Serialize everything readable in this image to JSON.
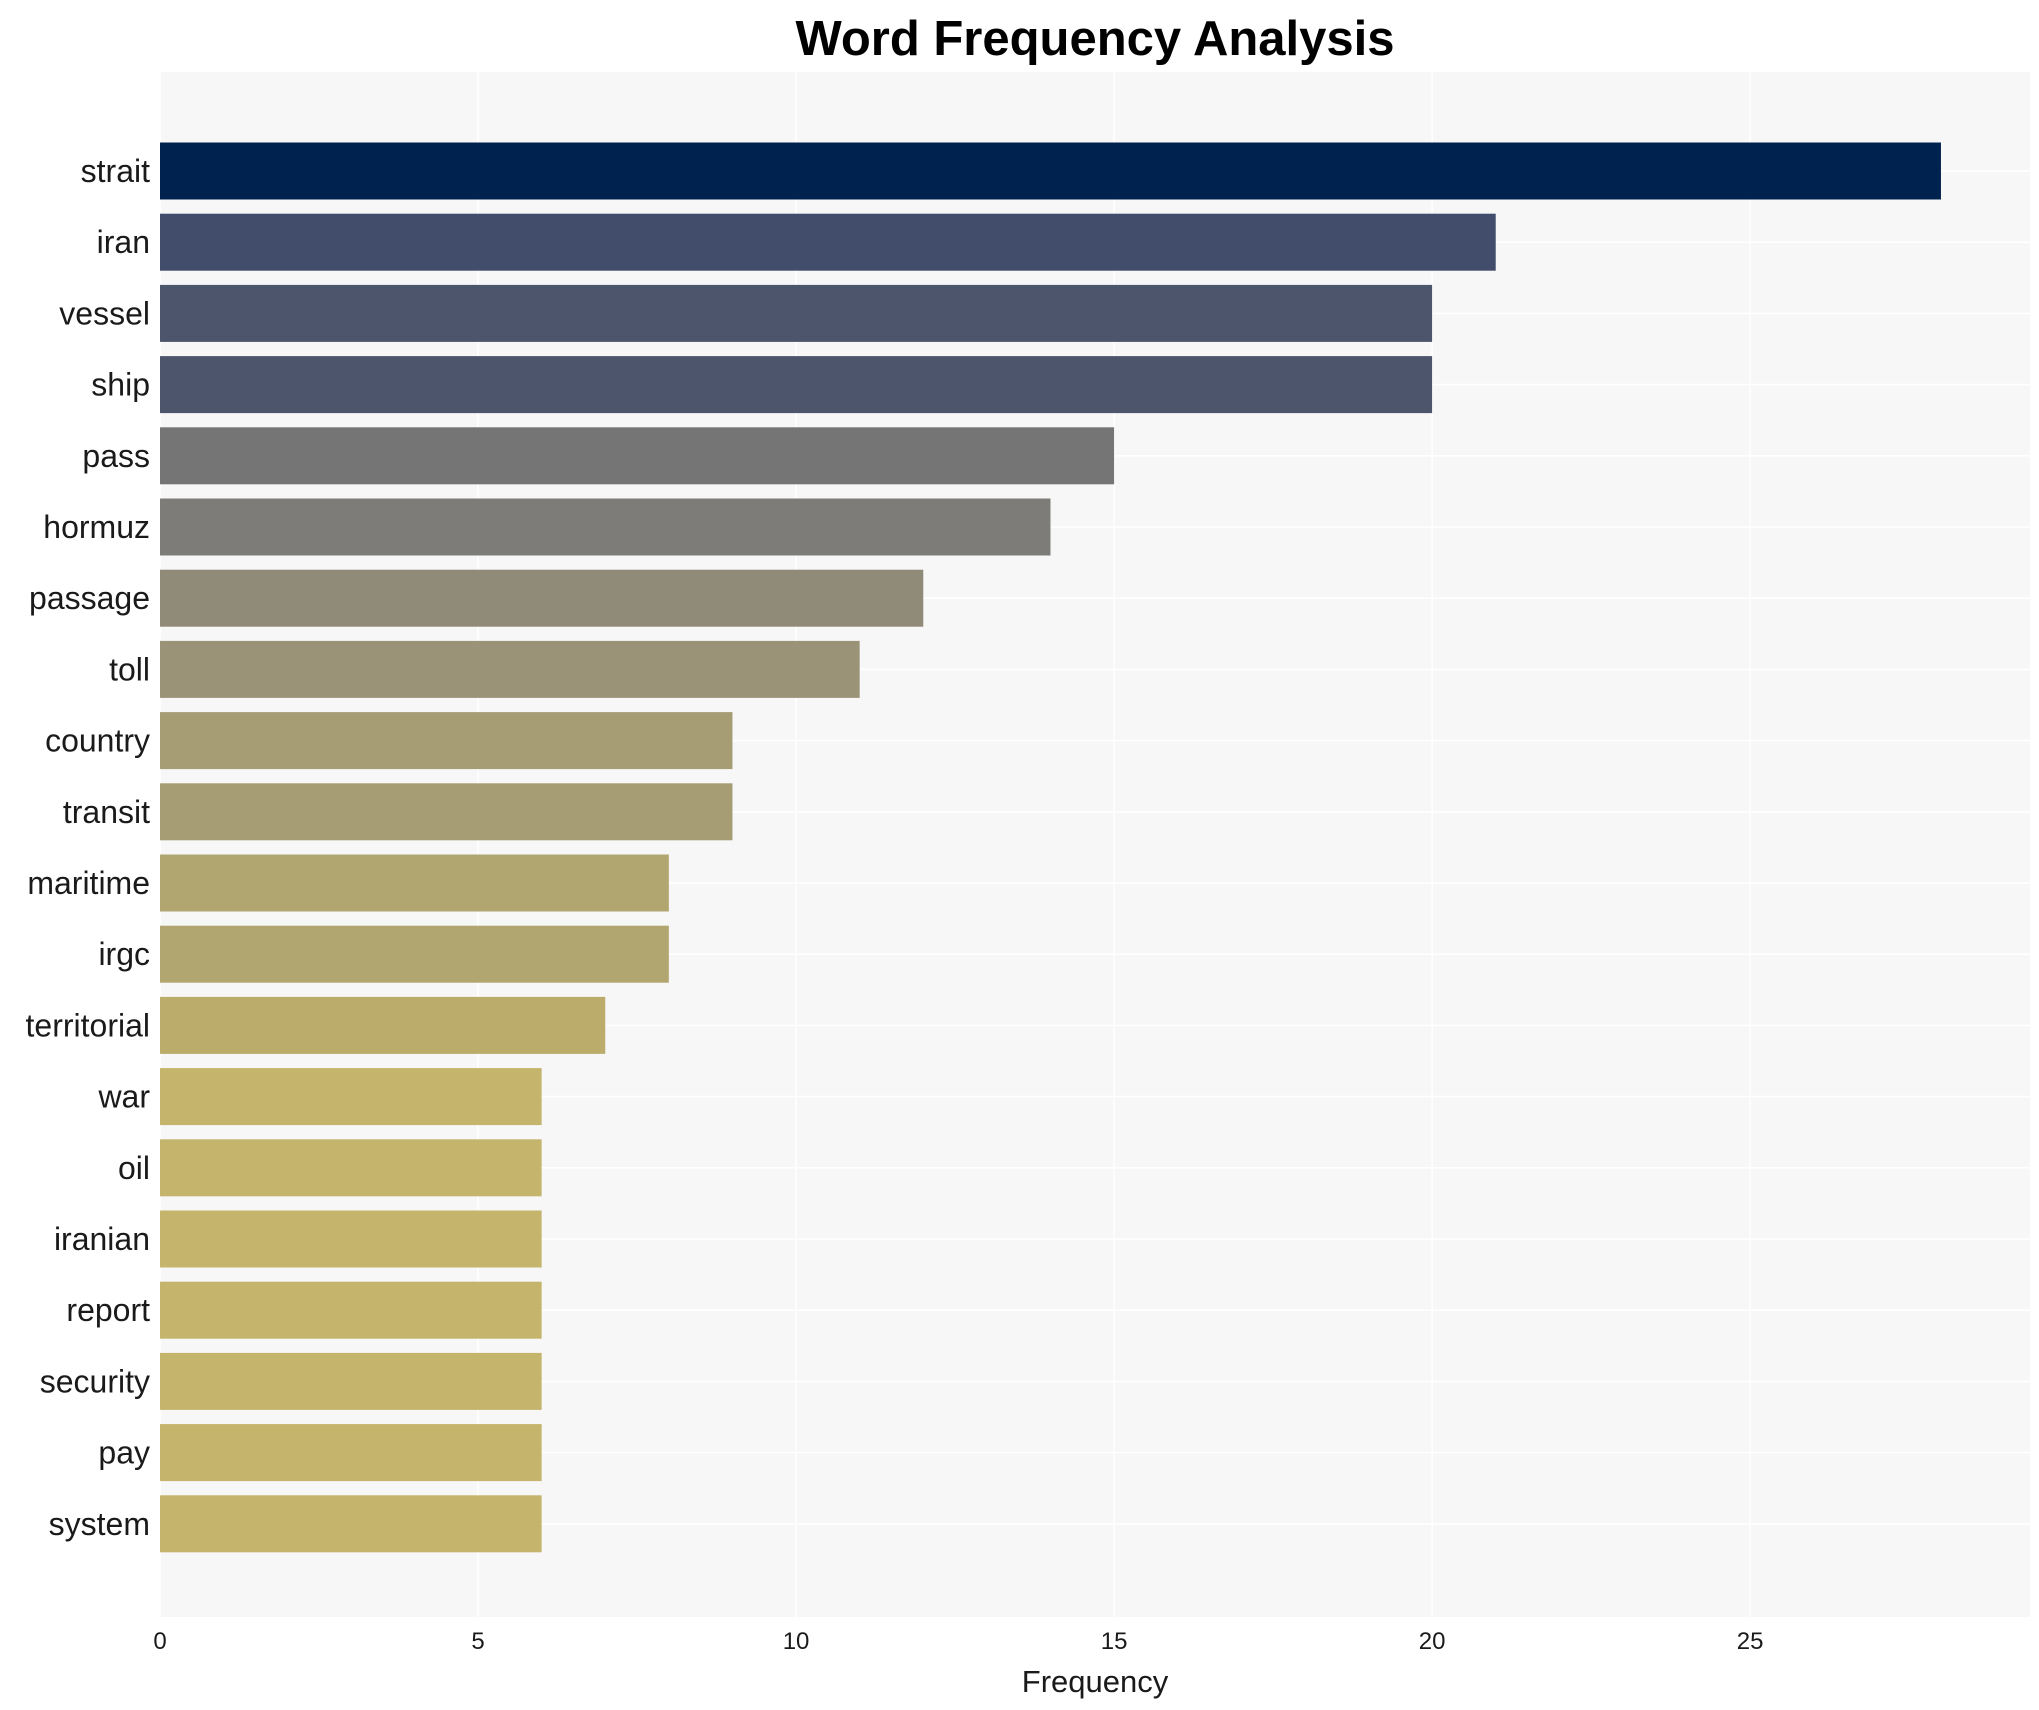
{
  "chart_data": {
    "type": "bar",
    "orientation": "horizontal",
    "title": "Word Frequency Analysis",
    "xlabel": "Frequency",
    "ylabel": "",
    "xlim": [
      0,
      29.4
    ],
    "xticks": [
      0,
      5,
      10,
      15,
      20,
      25
    ],
    "grid": true,
    "legend": "none",
    "categories": [
      "strait",
      "iran",
      "vessel",
      "ship",
      "pass",
      "hormuz",
      "passage",
      "toll",
      "country",
      "transit",
      "maritime",
      "irgc",
      "territorial",
      "war",
      "oil",
      "iranian",
      "report",
      "security",
      "pay",
      "system"
    ],
    "values": [
      28,
      21,
      20,
      20,
      15,
      14,
      12,
      11,
      9,
      9,
      8,
      8,
      7,
      6,
      6,
      6,
      6,
      6,
      6,
      6
    ],
    "bar_colors": [
      "#00224e",
      "#414d6b",
      "#4c556c",
      "#4c556c",
      "#757575",
      "#7d7c78",
      "#908a78",
      "#9b9377",
      "#a69d75",
      "#a69d75",
      "#b1a570",
      "#b1a570",
      "#bbac6b",
      "#c4b46c",
      "#c4b46c",
      "#c4b46c",
      "#c4b46c",
      "#c4b46c",
      "#c4b46c",
      "#c4b46c"
    ],
    "panel_background": "#f7f7f7"
  }
}
